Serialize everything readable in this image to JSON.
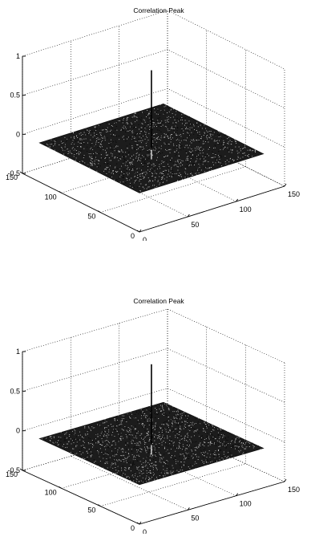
{
  "chart_data": [
    {
      "type": "surface3d",
      "title": "Correlation Peak",
      "xlabel": "",
      "ylabel": "",
      "zlabel": "",
      "x_ticks": [
        "0",
        "50",
        "100",
        "150"
      ],
      "y_ticks": [
        "0",
        "50",
        "100",
        "150"
      ],
      "z_ticks": [
        "-0.5",
        "0",
        "0.5",
        "1"
      ],
      "xlim": [
        0,
        150
      ],
      "ylim": [
        0,
        150
      ],
      "zlim": [
        -0.5,
        1
      ],
      "surface_extent": [
        128,
        128
      ],
      "noise_floor": 0.0,
      "peak": {
        "x": 64,
        "y": 64,
        "z": 1.0
      },
      "grid": true
    },
    {
      "type": "surface3d",
      "title": "Correlation Peak",
      "xlabel": "",
      "ylabel": "",
      "zlabel": "",
      "x_ticks": [
        "0",
        "50",
        "100",
        "150"
      ],
      "y_ticks": [
        "0",
        "50",
        "100",
        "150"
      ],
      "z_ticks": [
        "-0.5",
        "0",
        "0.5",
        "1"
      ],
      "xlim": [
        0,
        150
      ],
      "ylim": [
        0,
        150
      ],
      "zlim": [
        -0.5,
        1
      ],
      "surface_extent": [
        128,
        128
      ],
      "noise_floor": 0.0,
      "peak": {
        "x": 64,
        "y": 64,
        "z": 1.0
      },
      "grid": true
    }
  ]
}
